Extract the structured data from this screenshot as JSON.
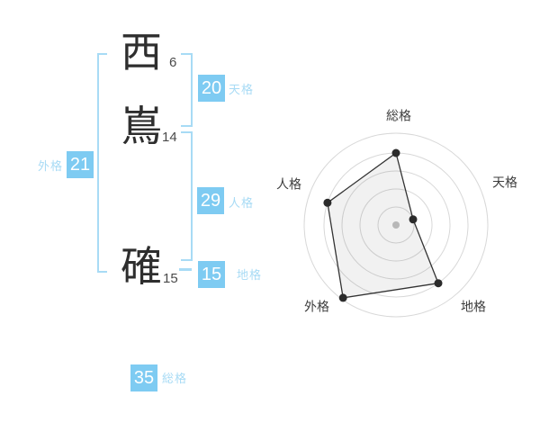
{
  "name": {
    "characters": [
      {
        "char": "西",
        "strokes": "6"
      },
      {
        "char": "嶌",
        "strokes": "14"
      },
      {
        "char": "確",
        "strokes": "15"
      }
    ]
  },
  "kaku": {
    "tenkaku": {
      "label": "天格",
      "value": "20"
    },
    "jinkaku": {
      "label": "人格",
      "value": "29"
    },
    "chikaku": {
      "label": "地格",
      "value": "15"
    },
    "gaikaku": {
      "label": "外格",
      "value": "21"
    },
    "soukaku": {
      "label": "総格",
      "value": "35"
    }
  },
  "chart_data": {
    "type": "radar",
    "categories": [
      "総格",
      "天格",
      "地格",
      "外格",
      "人格"
    ],
    "values": [
      4,
      1,
      4,
      5,
      4
    ],
    "scale": {
      "min": 0,
      "max": 5,
      "rings": 5
    },
    "start_angle_deg": -90,
    "direction": "clockwise",
    "grid": "concentric-circles",
    "legend": "none",
    "title": ""
  },
  "colors": {
    "box_blue": "#7ecbf2",
    "accent_blue_light": "#a8dbf5",
    "ink": "#2e2e2e",
    "ring_gray": "#d8d8d8",
    "polygon_stroke": "#333333",
    "vertex_dot": "#2b2b2b",
    "center_dot": "#c3c3c3",
    "axis_label": "#3d3d3d"
  }
}
